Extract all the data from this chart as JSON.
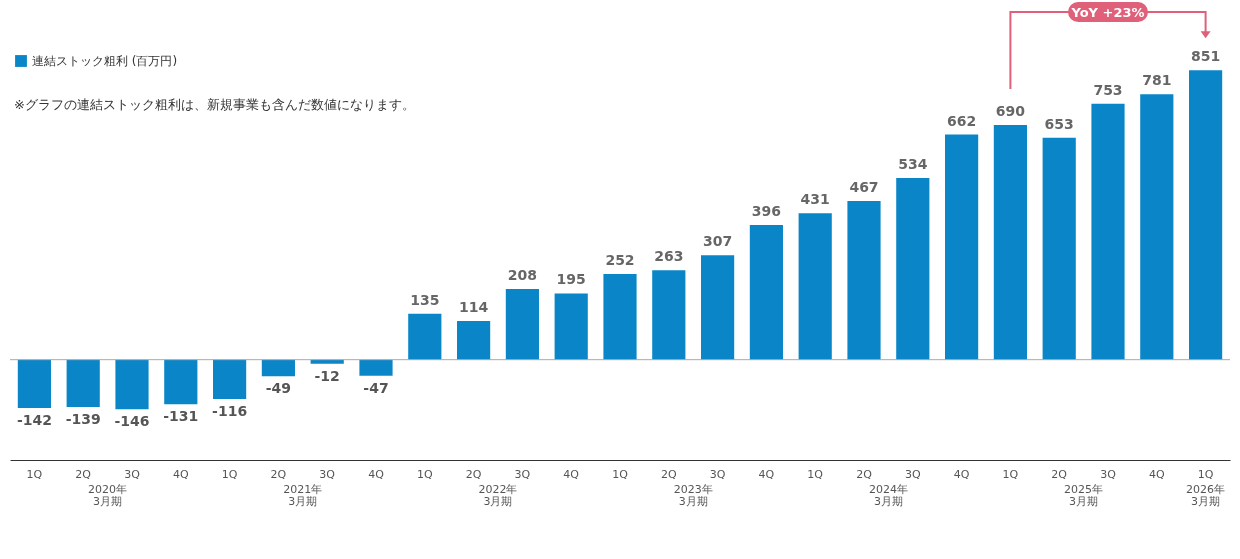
{
  "chart_data": {
    "type": "bar",
    "categories": [
      "1Q",
      "2Q",
      "3Q",
      "4Q",
      "1Q",
      "2Q",
      "3Q",
      "4Q",
      "1Q",
      "2Q",
      "3Q",
      "4Q",
      "1Q",
      "2Q",
      "3Q",
      "4Q",
      "1Q",
      "2Q",
      "3Q",
      "4Q",
      "1Q",
      "2Q",
      "3Q",
      "4Q",
      "1Q"
    ],
    "series": [
      {
        "name": "連結ストック粗利 (百万円)",
        "color": "#0a86c8",
        "values": [
          -142,
          -139,
          -146,
          -131,
          -116,
          -49,
          -12,
          -47,
          135,
          114,
          208,
          195,
          252,
          263,
          307,
          396,
          431,
          467,
          534,
          662,
          690,
          653,
          753,
          781,
          851
        ]
      }
    ],
    "data_labels": true,
    "legend": "top left",
    "annotations": [
      "※グラフの連結ストック粗利は、新規事業も含んだ数値になります。",
      "2020年3月期",
      "2021年3月期",
      "2022年3月期",
      "2023年3月期",
      "2024年3月期",
      "2025年3月期",
      "2026年3月期",
      "YoY +23%"
    ]
  }
}
